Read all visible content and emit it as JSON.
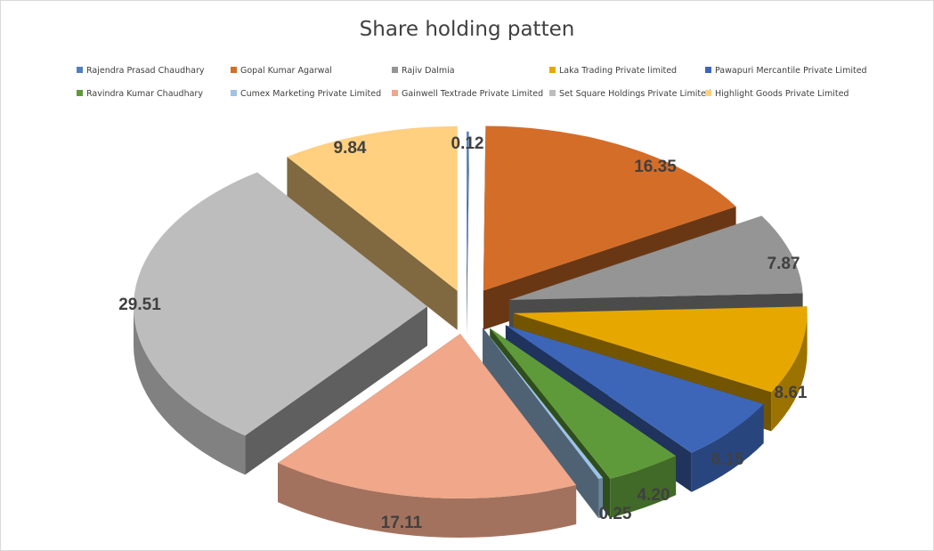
{
  "chart_data": {
    "type": "pie",
    "title": "Share holding patten",
    "legend_position": "top",
    "categories": [
      "Rajendra Prasad Chaudhary",
      "Gopal Kumar Agarwal",
      "Rajiv Dalmia",
      "Laka Trading Private limited",
      "Pawapuri Mercantile Private Limited",
      "Ravindra Kumar Chaudhary",
      "Cumex Marketing Private Limited",
      "Gainwell Textrade Private Limited",
      "Set Square Holdings Private Limited",
      "Highlight Goods Private Limited"
    ],
    "values": [
      0.12,
      16.35,
      7.87,
      8.61,
      6.15,
      4.2,
      0.25,
      17.11,
      29.51,
      9.84
    ],
    "data_labels": [
      "0.12",
      "16.35",
      "7.87",
      "8.61",
      "6.15",
      "4.20",
      "0.25",
      "17.11",
      "29.51",
      "9.84"
    ],
    "colors": [
      "#4f81bd",
      "#d46d28",
      "#959595",
      "#e6a800",
      "#3d66b8",
      "#5f9a3a",
      "#9dc3e6",
      "#f0a78a",
      "#bdbdbd",
      "#ffd07f"
    ]
  }
}
